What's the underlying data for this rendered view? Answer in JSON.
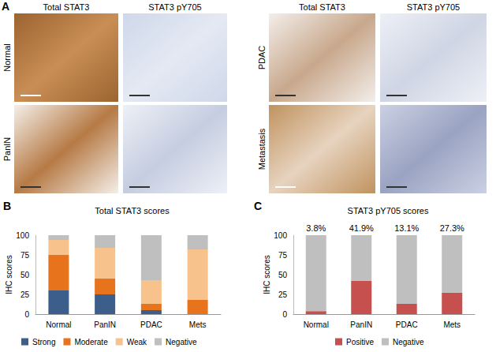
{
  "image_panels": {
    "label": "A",
    "groups": [
      {
        "columns": [
          "Total STAT3",
          "STAT3 pY705"
        ],
        "rows": [
          "Normal",
          "PanIN"
        ]
      },
      {
        "columns": [
          "Total STAT3",
          "STAT3 pY705"
        ],
        "rows": [
          "PDAC",
          "Metastasis"
        ]
      }
    ]
  },
  "chart_data": [
    {
      "type": "bar",
      "panel_label": "B",
      "title": "Total STAT3 scores",
      "y_label": "IHC scores",
      "stacked": true,
      "grid": false,
      "legend": "bottom",
      "categories": [
        "Normal",
        "PanIN",
        "PDAC",
        "Mets"
      ],
      "ylim": [
        0,
        100
      ],
      "yticks": [
        0,
        25,
        50,
        75,
        100
      ],
      "series": [
        {
          "name": "Strong",
          "color": "#3b5f8a",
          "values": [
            30,
            25,
            5,
            0
          ]
        },
        {
          "name": "Moderate",
          "color": "#e8731d",
          "values": [
            45,
            20,
            8,
            18
          ]
        },
        {
          "name": "Weak",
          "color": "#f8c28c",
          "values": [
            19,
            39,
            30,
            64
          ]
        },
        {
          "name": "Negative",
          "color": "#bfbfbf",
          "values": [
            6,
            16,
            57,
            18
          ]
        }
      ]
    },
    {
      "type": "bar",
      "panel_label": "C",
      "title": "STAT3 pY705 scores",
      "y_label": "IHC scores",
      "stacked": true,
      "grid": false,
      "legend": "bottom",
      "categories": [
        "Normal",
        "PanIN",
        "PDAC",
        "Mets"
      ],
      "ylim": [
        0,
        100
      ],
      "yticks": [
        0,
        25,
        50,
        75,
        100
      ],
      "series": [
        {
          "name": "Positive",
          "color": "#c6504e",
          "values": [
            3.8,
            41.9,
            13.1,
            27.3
          ],
          "data_labels": true,
          "value_labels": [
            "3.8%",
            "41.9%",
            "13.1%",
            "27.3%"
          ]
        },
        {
          "name": "Negative",
          "color": "#bfbfbf",
          "values": [
            96.2,
            58.1,
            86.9,
            72.7
          ]
        }
      ]
    }
  ]
}
